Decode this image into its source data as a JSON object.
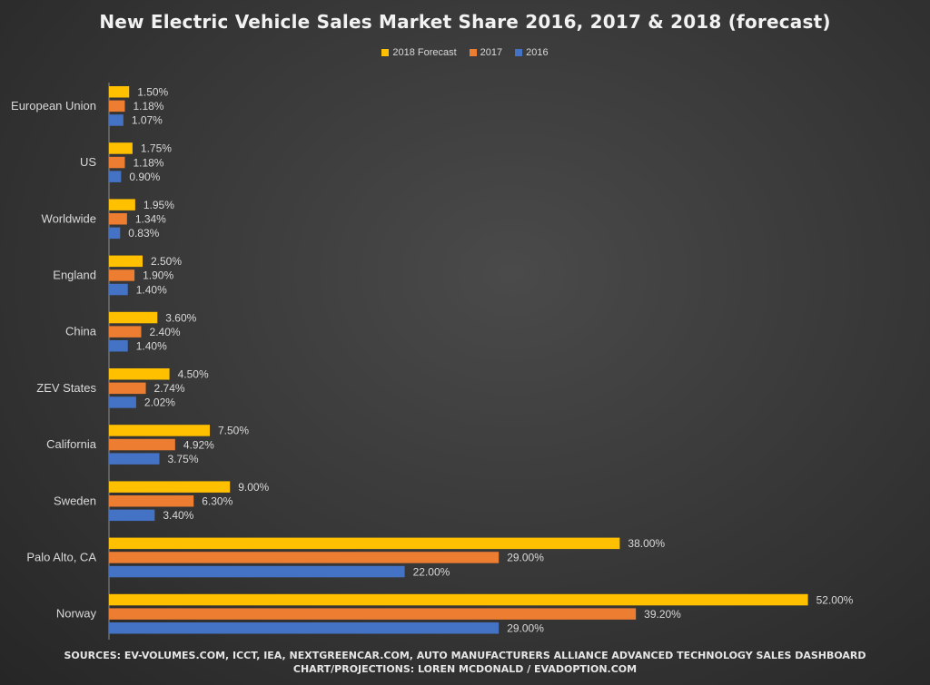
{
  "chart_data": {
    "type": "bar",
    "orientation": "horizontal",
    "title": "New Electric Vehicle Sales Market Share 2016, 2017 & 2018 (forecast)",
    "categories": [
      "European Union",
      "US",
      "Worldwide",
      "England",
      "China",
      "ZEV States",
      "California",
      "Sweden",
      "Palo Alto, CA",
      "Norway"
    ],
    "series": [
      {
        "name": "2018 Forecast",
        "color": "#ffc000",
        "values": [
          1.5,
          1.75,
          1.95,
          2.5,
          3.6,
          4.5,
          7.5,
          9.0,
          38.0,
          52.0
        ],
        "labels": [
          "1.50%",
          "1.75%",
          "1.95%",
          "2.50%",
          "3.60%",
          "4.50%",
          "7.50%",
          "9.00%",
          "38.00%",
          "52.00%"
        ]
      },
      {
        "name": "2017",
        "color": "#ed7d31",
        "values": [
          1.18,
          1.18,
          1.34,
          1.9,
          2.4,
          2.74,
          4.92,
          6.3,
          29.0,
          39.2
        ],
        "labels": [
          "1.18%",
          "1.18%",
          "1.34%",
          "1.90%",
          "2.40%",
          "2.74%",
          "4.92%",
          "6.30%",
          "29.00%",
          "39.20%"
        ]
      },
      {
        "name": "2016",
        "color": "#4472c4",
        "values": [
          1.07,
          0.9,
          0.83,
          1.4,
          1.4,
          2.02,
          3.75,
          3.4,
          22.0,
          29.0
        ],
        "labels": [
          "1.07%",
          "0.90%",
          "0.83%",
          "1.40%",
          "1.40%",
          "2.02%",
          "3.75%",
          "3.40%",
          "22.00%",
          "29.00%"
        ]
      }
    ],
    "legend_position": "top",
    "grid": false
  },
  "footer": {
    "sources": "SOURCES: EV-VOLUMES.COM, ICCT, IEA, NEXTGREENCAR.COM, AUTO MANUFACTURERS ALLIANCE ADVANCED TECHNOLOGY SALES DASHBOARD",
    "credit": "CHART/PROJECTIONS: LOREN MCDONALD / EVADOPTION.COM"
  }
}
